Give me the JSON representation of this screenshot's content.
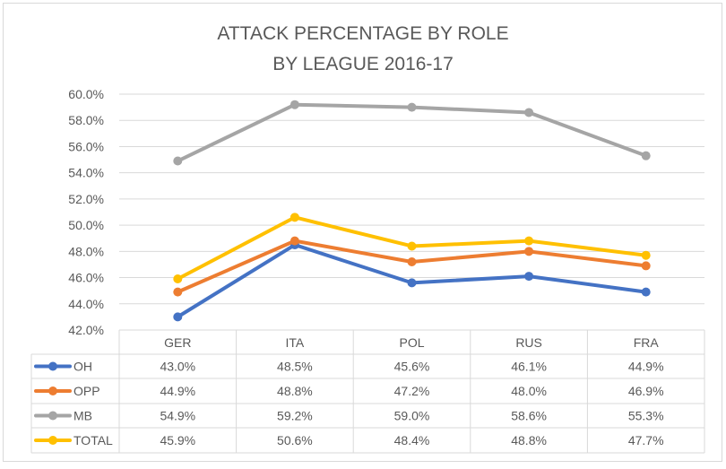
{
  "chart_data": {
    "type": "line",
    "title": [
      "ATTACK PERCENTAGE BY ROLE",
      "BY LEAGUE 2016-17"
    ],
    "categories": [
      "GER",
      "ITA",
      "POL",
      "RUS",
      "FRA"
    ],
    "ylim": [
      42.0,
      60.0
    ],
    "yticks": [
      "42.0%",
      "44.0%",
      "46.0%",
      "48.0%",
      "50.0%",
      "52.0%",
      "54.0%",
      "56.0%",
      "58.0%",
      "60.0%"
    ],
    "grid": true,
    "legend": "data-table",
    "series": [
      {
        "name": "OH",
        "color": "#4472C4",
        "values": [
          43.0,
          48.5,
          45.6,
          46.1,
          44.9
        ],
        "labels": [
          "43.0%",
          "48.5%",
          "45.6%",
          "46.1%",
          "44.9%"
        ]
      },
      {
        "name": "OPP",
        "color": "#ED7D31",
        "values": [
          44.9,
          48.8,
          47.2,
          48.0,
          46.9
        ],
        "labels": [
          "44.9%",
          "48.8%",
          "47.2%",
          "48.0%",
          "46.9%"
        ]
      },
      {
        "name": "MB",
        "color": "#A5A5A5",
        "values": [
          54.9,
          59.2,
          59.0,
          58.6,
          55.3
        ],
        "labels": [
          "54.9%",
          "59.2%",
          "59.0%",
          "58.6%",
          "55.3%"
        ]
      },
      {
        "name": "TOTAL",
        "color": "#FFC000",
        "values": [
          45.9,
          50.6,
          48.4,
          48.8,
          47.7
        ],
        "labels": [
          "45.9%",
          "50.6%",
          "48.4%",
          "48.8%",
          "47.7%"
        ]
      }
    ]
  }
}
